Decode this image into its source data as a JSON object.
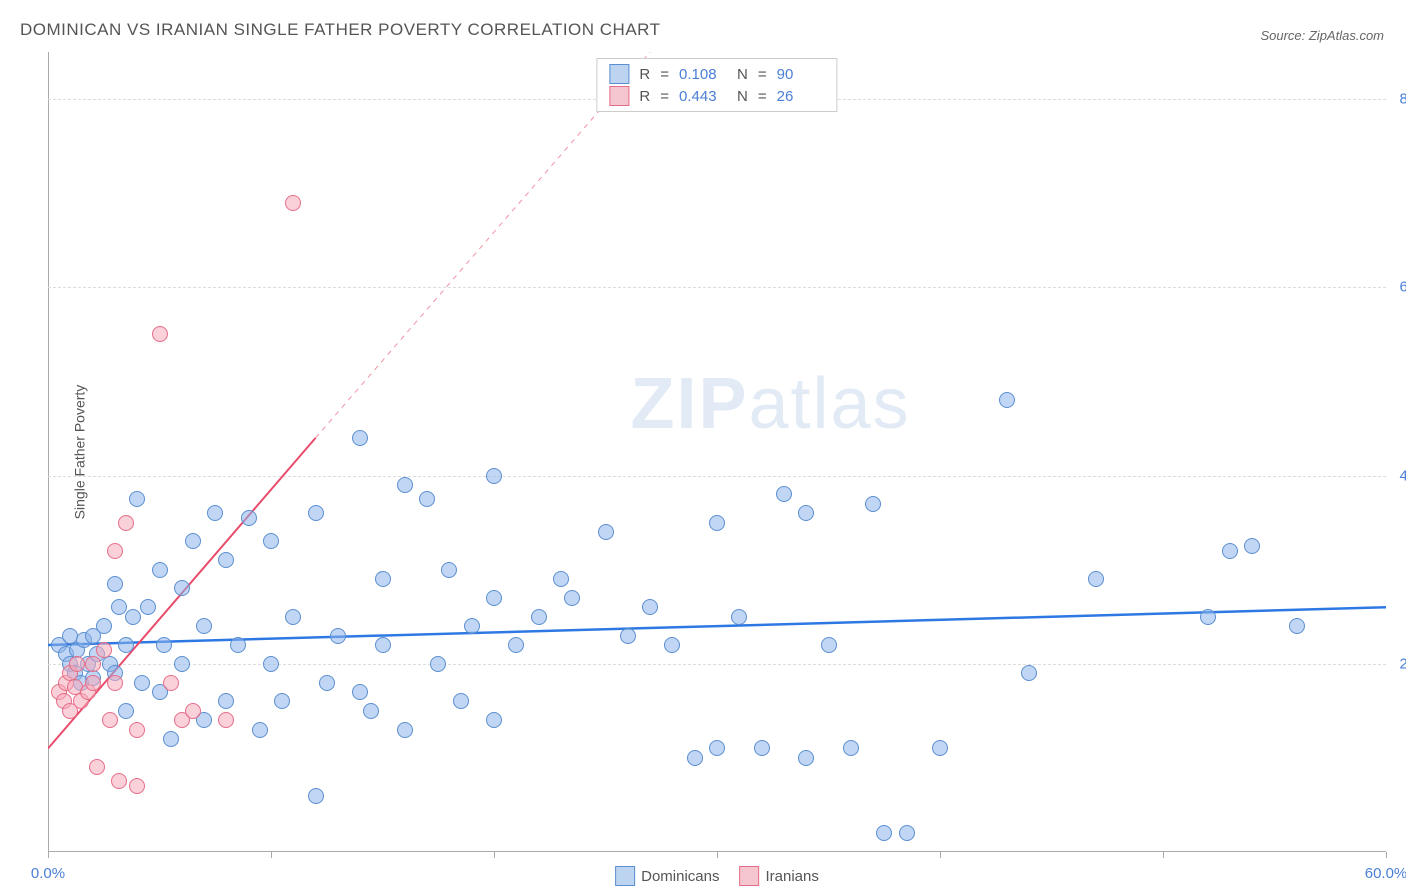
{
  "title": "DOMINICAN VS IRANIAN SINGLE FATHER POVERTY CORRELATION CHART",
  "source_label": "Source: ZipAtlas.com",
  "y_axis_label": "Single Father Poverty",
  "watermark_a": "ZIP",
  "watermark_b": "atlas",
  "chart": {
    "type": "scatter",
    "xlim": [
      0,
      60
    ],
    "ylim": [
      0,
      85
    ],
    "x_ticks": [
      0,
      10,
      20,
      30,
      40,
      50,
      60
    ],
    "x_tick_labels": {
      "0": "0.0%",
      "60": "60.0%"
    },
    "y_gridlines": [
      20,
      40,
      60,
      80
    ],
    "y_tick_labels": {
      "20": "20.0%",
      "40": "40.0%",
      "60": "60.0%",
      "80": "80.0%"
    },
    "grid_color": "#dddddd",
    "axis_color": "#aaaaaa",
    "background_color": "#ffffff",
    "series": [
      {
        "name": "Dominicans",
        "r": 0.108,
        "n": 90,
        "marker_fill": "rgba(140, 180, 235, 0.55)",
        "marker_stroke": "#5b8fd1",
        "marker_radius": 8,
        "swatch_fill": "#bdd4f1",
        "swatch_stroke": "#5b8fd1",
        "regression_color": "#2e78e4",
        "regression_width": 2.5,
        "regression": {
          "x1": 0,
          "y1": 22,
          "x2": 60,
          "y2": 26
        },
        "regression_dash_ext": null,
        "points": [
          [
            0.5,
            22
          ],
          [
            0.8,
            21
          ],
          [
            1,
            20
          ],
          [
            1,
            23
          ],
          [
            1.2,
            19
          ],
          [
            1.3,
            21.5
          ],
          [
            1.5,
            18
          ],
          [
            1.6,
            22.5
          ],
          [
            1.8,
            20
          ],
          [
            2,
            23
          ],
          [
            2,
            18.5
          ],
          [
            2.2,
            21
          ],
          [
            2.5,
            24
          ],
          [
            2.8,
            20
          ],
          [
            3,
            28.5
          ],
          [
            3,
            19
          ],
          [
            3.2,
            26
          ],
          [
            3.5,
            15
          ],
          [
            3.5,
            22
          ],
          [
            3.8,
            25
          ],
          [
            4,
            37.5
          ],
          [
            4.2,
            18
          ],
          [
            4.5,
            26
          ],
          [
            5,
            30
          ],
          [
            5,
            17
          ],
          [
            5.2,
            22
          ],
          [
            5.5,
            12
          ],
          [
            6,
            28
          ],
          [
            6,
            20
          ],
          [
            6.5,
            33
          ],
          [
            7,
            14
          ],
          [
            7,
            24
          ],
          [
            7.5,
            36
          ],
          [
            8,
            16
          ],
          [
            8.5,
            22
          ],
          [
            9,
            35.5
          ],
          [
            9.5,
            13
          ],
          [
            10,
            20
          ],
          [
            10,
            33
          ],
          [
            10.5,
            16
          ],
          [
            11,
            25
          ],
          [
            12,
            36
          ],
          [
            12,
            6
          ],
          [
            12.5,
            18
          ],
          [
            13,
            23
          ],
          [
            14,
            44
          ],
          [
            14.5,
            15
          ],
          [
            15,
            29
          ],
          [
            15,
            22
          ],
          [
            16,
            39
          ],
          [
            16,
            13
          ],
          [
            17,
            37.5
          ],
          [
            17.5,
            20
          ],
          [
            18,
            30
          ],
          [
            18.5,
            16
          ],
          [
            19,
            24
          ],
          [
            20,
            27
          ],
          [
            20,
            40
          ],
          [
            20,
            14
          ],
          [
            21,
            22
          ],
          [
            22,
            25
          ],
          [
            23,
            29
          ],
          [
            23.5,
            27
          ],
          [
            25,
            34
          ],
          [
            26,
            23
          ],
          [
            27,
            26
          ],
          [
            28,
            22
          ],
          [
            29,
            10
          ],
          [
            30,
            35
          ],
          [
            31,
            25
          ],
          [
            32,
            11
          ],
          [
            33,
            38
          ],
          [
            34,
            36
          ],
          [
            35,
            22
          ],
          [
            36,
            11
          ],
          [
            37,
            37
          ],
          [
            37.5,
            2
          ],
          [
            38.5,
            2
          ],
          [
            40,
            11
          ],
          [
            43,
            48
          ],
          [
            44,
            19
          ],
          [
            47,
            29
          ],
          [
            53,
            32
          ],
          [
            54,
            32.5
          ],
          [
            56,
            24
          ],
          [
            52,
            25
          ],
          [
            34,
            10
          ],
          [
            30,
            11
          ],
          [
            14,
            17
          ],
          [
            8,
            31
          ]
        ]
      },
      {
        "name": "Iranians",
        "r": 0.443,
        "n": 26,
        "marker_fill": "rgba(245, 170, 185, 0.55)",
        "marker_stroke": "#e66d87",
        "marker_radius": 8,
        "swatch_fill": "#f6c6d0",
        "swatch_stroke": "#e66d87",
        "regression_color": "#e94b6a",
        "regression_width": 2,
        "regression": {
          "x1": 0,
          "y1": 11,
          "x2": 12,
          "y2": 44
        },
        "regression_dash_ext": {
          "x1": 12,
          "y1": 44,
          "x2": 27,
          "y2": 85
        },
        "points": [
          [
            0.5,
            17
          ],
          [
            0.7,
            16
          ],
          [
            0.8,
            18
          ],
          [
            1,
            15
          ],
          [
            1,
            19
          ],
          [
            1.2,
            17.5
          ],
          [
            1.3,
            20
          ],
          [
            1.5,
            16
          ],
          [
            1.8,
            17
          ],
          [
            2,
            18
          ],
          [
            2,
            20
          ],
          [
            2.2,
            9
          ],
          [
            2.5,
            21.5
          ],
          [
            2.8,
            14
          ],
          [
            3,
            32
          ],
          [
            3.2,
            7.5
          ],
          [
            3.5,
            35
          ],
          [
            4,
            13
          ],
          [
            4,
            7
          ],
          [
            5,
            55
          ],
          [
            5.5,
            18
          ],
          [
            6,
            14
          ],
          [
            6.5,
            15
          ],
          [
            8,
            14
          ],
          [
            11,
            69
          ],
          [
            3,
            18
          ]
        ]
      }
    ]
  },
  "legend_top": {
    "r_label": "R",
    "n_label": "N",
    "eq": "="
  },
  "legend_bottom": {
    "items": [
      "Dominicans",
      "Iranians"
    ]
  }
}
